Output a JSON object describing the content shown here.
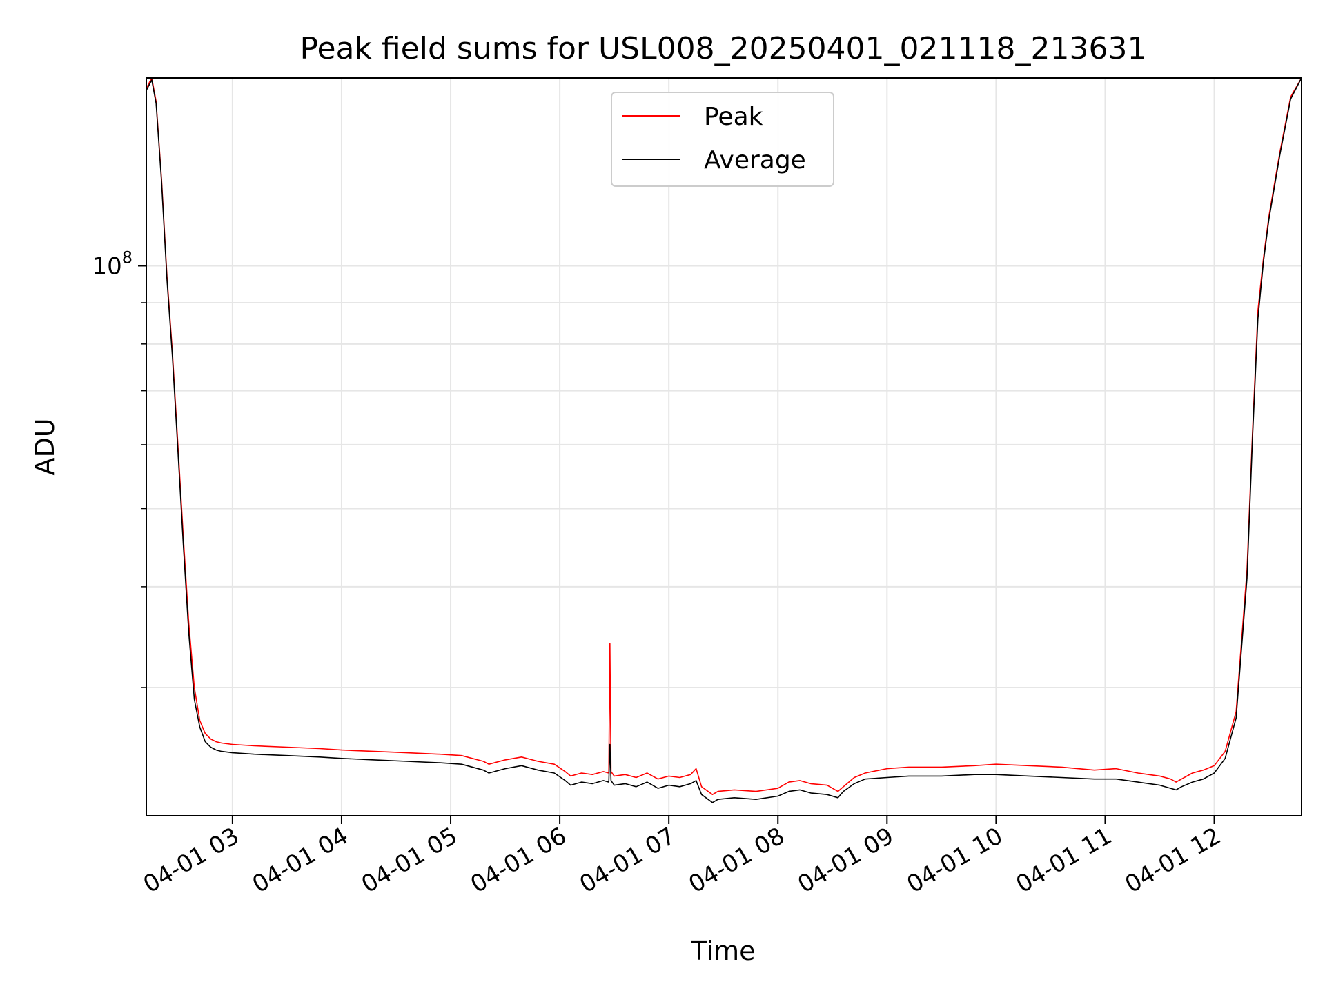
{
  "chart_data": {
    "type": "line",
    "title": "Peak field sums for USL008_20250401_021118_213631",
    "xlabel": "Time",
    "ylabel": "ADU",
    "yscale": "log",
    "grid": true,
    "legend_position": "top-center",
    "x_tick_labels": [
      "04-01 03",
      "04-01 04",
      "04-01 05",
      "04-01 06",
      "04-01 07",
      "04-01 08",
      "04-01 09",
      "04-01 10",
      "04-01 11",
      "04-01 12"
    ],
    "x_ticks_hours": [
      3,
      4,
      5,
      6,
      7,
      8,
      9,
      10,
      11,
      12
    ],
    "xlim_hours": [
      2.21,
      12.8
    ],
    "y_major_tick_label": "10^8",
    "y_major_tick_value": 100000000,
    "ylim": [
      20800000,
      171000000
    ],
    "series": [
      {
        "name": "Peak",
        "color": "#ff0000",
        "hours": [
          2.21,
          2.26,
          2.3,
          2.35,
          2.4,
          2.45,
          2.5,
          2.55,
          2.6,
          2.65,
          2.7,
          2.75,
          2.8,
          2.85,
          2.9,
          3.0,
          3.2,
          3.5,
          3.8,
          4.0,
          4.3,
          4.6,
          4.9,
          5.1,
          5.3,
          5.35,
          5.5,
          5.65,
          5.8,
          5.95,
          6.05,
          6.1,
          6.2,
          6.3,
          6.4,
          6.45,
          6.46,
          6.47,
          6.5,
          6.6,
          6.7,
          6.8,
          6.9,
          7.0,
          7.1,
          7.2,
          7.25,
          7.3,
          7.4,
          7.45,
          7.6,
          7.8,
          8.0,
          8.1,
          8.2,
          8.3,
          8.45,
          8.55,
          8.6,
          8.7,
          8.8,
          9.0,
          9.2,
          9.5,
          9.8,
          10.0,
          10.3,
          10.6,
          10.9,
          11.1,
          11.3,
          11.5,
          11.6,
          11.65,
          11.7,
          11.8,
          11.9,
          12.0,
          12.1,
          12.2,
          12.3,
          12.35,
          12.4,
          12.45,
          12.5,
          12.6,
          12.7,
          12.8
        ],
        "values": [
          166000000,
          171000000,
          160000000,
          128000000,
          97000000,
          78000000,
          60000000,
          46000000,
          36000000,
          30000000,
          27300000,
          26300000,
          25900000,
          25700000,
          25600000,
          25500000,
          25400000,
          25300000,
          25200000,
          25100000,
          25000000,
          24900000,
          24800000,
          24700000,
          24300000,
          24100000,
          24400000,
          24600000,
          24300000,
          24100000,
          23600000,
          23300000,
          23500000,
          23400000,
          23600000,
          23500000,
          34000000,
          23600000,
          23300000,
          23400000,
          23200000,
          23500000,
          23100000,
          23300000,
          23200000,
          23400000,
          23800000,
          22600000,
          22100000,
          22300000,
          22400000,
          22300000,
          22500000,
          22900000,
          23000000,
          22800000,
          22700000,
          22300000,
          22600000,
          23200000,
          23500000,
          23800000,
          23900000,
          23900000,
          24000000,
          24100000,
          24000000,
          23900000,
          23700000,
          23800000,
          23500000,
          23300000,
          23100000,
          22900000,
          23100000,
          23500000,
          23700000,
          24000000,
          25000000,
          28000000,
          42000000,
          62000000,
          88000000,
          102000000,
          115000000,
          138000000,
          162000000,
          171000000
        ]
      },
      {
        "name": "Average",
        "color": "#000000",
        "hours": [
          2.21,
          2.26,
          2.3,
          2.35,
          2.4,
          2.45,
          2.5,
          2.55,
          2.6,
          2.65,
          2.7,
          2.75,
          2.8,
          2.85,
          2.9,
          3.0,
          3.2,
          3.5,
          3.8,
          4.0,
          4.3,
          4.6,
          4.9,
          5.1,
          5.3,
          5.35,
          5.5,
          5.65,
          5.8,
          5.95,
          6.05,
          6.1,
          6.2,
          6.3,
          6.4,
          6.45,
          6.46,
          6.47,
          6.5,
          6.6,
          6.7,
          6.8,
          6.9,
          7.0,
          7.1,
          7.2,
          7.25,
          7.3,
          7.4,
          7.45,
          7.6,
          7.8,
          8.0,
          8.1,
          8.2,
          8.3,
          8.45,
          8.55,
          8.6,
          8.7,
          8.8,
          9.0,
          9.2,
          9.5,
          9.8,
          10.0,
          10.3,
          10.6,
          10.9,
          11.1,
          11.3,
          11.5,
          11.6,
          11.65,
          11.7,
          11.8,
          11.9,
          12.0,
          12.1,
          12.2,
          12.3,
          12.35,
          12.4,
          12.45,
          12.5,
          12.6,
          12.7,
          12.8
        ],
        "values": [
          165000000,
          170000000,
          159000000,
          127000000,
          96000000,
          77000000,
          59000000,
          45000000,
          35000000,
          29000000,
          26800000,
          25700000,
          25300000,
          25100000,
          25000000,
          24900000,
          24800000,
          24700000,
          24600000,
          24500000,
          24400000,
          24300000,
          24200000,
          24100000,
          23700000,
          23500000,
          23800000,
          24000000,
          23700000,
          23500000,
          23000000,
          22700000,
          22900000,
          22800000,
          23000000,
          22900000,
          25500000,
          23000000,
          22700000,
          22800000,
          22600000,
          22900000,
          22500000,
          22700000,
          22600000,
          22800000,
          23000000,
          22100000,
          21600000,
          21800000,
          21900000,
          21800000,
          22000000,
          22300000,
          22400000,
          22200000,
          22100000,
          21900000,
          22300000,
          22800000,
          23100000,
          23200000,
          23300000,
          23300000,
          23400000,
          23400000,
          23300000,
          23200000,
          23100000,
          23100000,
          22900000,
          22700000,
          22500000,
          22400000,
          22600000,
          22900000,
          23100000,
          23500000,
          24500000,
          27500000,
          41000000,
          61000000,
          86000000,
          101000000,
          114000000,
          137000000,
          161000000,
          171000000
        ]
      }
    ]
  }
}
